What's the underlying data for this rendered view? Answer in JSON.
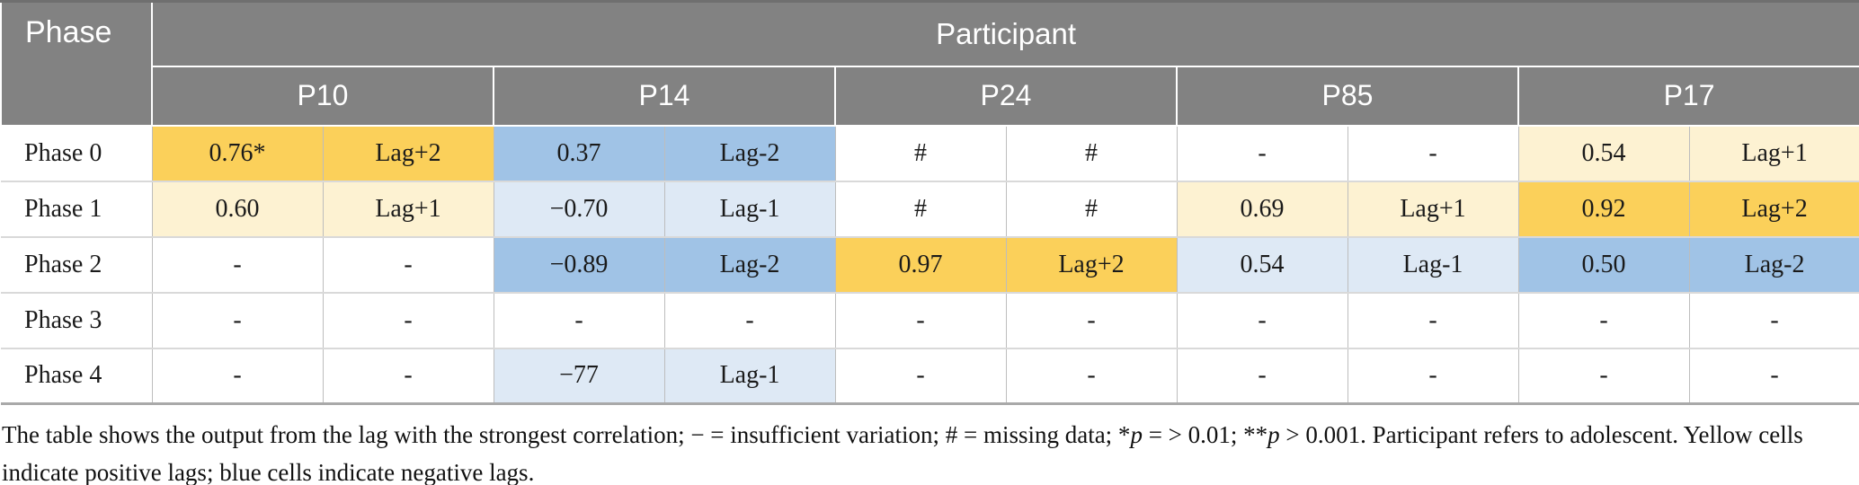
{
  "colors": {
    "y2": "#FBD05A",
    "y1": "#FDF2D2",
    "b2": "#A0C3E6",
    "b1": "#DEE9F5",
    "plain": "#FFFFFF"
  },
  "table": {
    "corner_header": "Phase",
    "group_header": "Participant",
    "participants": [
      "P10",
      "P14",
      "P24",
      "P85",
      "P17"
    ],
    "rows": [
      {
        "label": "Phase 0",
        "cells": [
          {
            "text": "0.76*",
            "shade": "y2"
          },
          {
            "text": "Lag+2",
            "shade": "y2"
          },
          {
            "text": "0.37",
            "shade": "b2"
          },
          {
            "text": "Lag-2",
            "shade": "b2"
          },
          {
            "text": "#",
            "shade": "plain"
          },
          {
            "text": "#",
            "shade": "plain"
          },
          {
            "text": "-",
            "shade": "plain"
          },
          {
            "text": "-",
            "shade": "plain"
          },
          {
            "text": "0.54",
            "shade": "y1"
          },
          {
            "text": "Lag+1",
            "shade": "y1"
          }
        ]
      },
      {
        "label": "Phase 1",
        "cells": [
          {
            "text": "0.60",
            "shade": "y1"
          },
          {
            "text": "Lag+1",
            "shade": "y1"
          },
          {
            "text": "−0.70",
            "shade": "b1"
          },
          {
            "text": "Lag-1",
            "shade": "b1"
          },
          {
            "text": "#",
            "shade": "plain"
          },
          {
            "text": "#",
            "shade": "plain"
          },
          {
            "text": "0.69",
            "shade": "y1"
          },
          {
            "text": "Lag+1",
            "shade": "y1"
          },
          {
            "text": "0.92",
            "shade": "y2"
          },
          {
            "text": "Lag+2",
            "shade": "y2"
          }
        ]
      },
      {
        "label": "Phase 2",
        "cells": [
          {
            "text": "-",
            "shade": "plain"
          },
          {
            "text": "-",
            "shade": "plain"
          },
          {
            "text": "−0.89",
            "shade": "b2"
          },
          {
            "text": "Lag-2",
            "shade": "b2"
          },
          {
            "text": "0.97",
            "shade": "y2"
          },
          {
            "text": "Lag+2",
            "shade": "y2"
          },
          {
            "text": "0.54",
            "shade": "b1"
          },
          {
            "text": "Lag-1",
            "shade": "b1"
          },
          {
            "text": "0.50",
            "shade": "b2"
          },
          {
            "text": "Lag-2",
            "shade": "b2"
          }
        ]
      },
      {
        "label": "Phase 3",
        "cells": [
          {
            "text": "-",
            "shade": "plain"
          },
          {
            "text": "-",
            "shade": "plain"
          },
          {
            "text": "-",
            "shade": "plain"
          },
          {
            "text": "-",
            "shade": "plain"
          },
          {
            "text": "-",
            "shade": "plain"
          },
          {
            "text": "-",
            "shade": "plain"
          },
          {
            "text": "-",
            "shade": "plain"
          },
          {
            "text": "-",
            "shade": "plain"
          },
          {
            "text": "-",
            "shade": "plain"
          },
          {
            "text": "-",
            "shade": "plain"
          }
        ]
      },
      {
        "label": "Phase 4",
        "cells": [
          {
            "text": "-",
            "shade": "plain"
          },
          {
            "text": "-",
            "shade": "plain"
          },
          {
            "text": "−77",
            "shade": "b1"
          },
          {
            "text": "Lag-1",
            "shade": "b1"
          },
          {
            "text": "-",
            "shade": "plain"
          },
          {
            "text": "-",
            "shade": "plain"
          },
          {
            "text": "-",
            "shade": "plain"
          },
          {
            "text": "-",
            "shade": "plain"
          },
          {
            "text": "-",
            "shade": "plain"
          },
          {
            "text": "-",
            "shade": "plain"
          }
        ]
      }
    ]
  },
  "footnote": {
    "segments": [
      {
        "text": "The table shows the output from the lag with the strongest correlation; − = insufficient variation; # = missing data; *"
      },
      {
        "text": "p",
        "italic": true
      },
      {
        "text": " = > 0.01; **"
      },
      {
        "text": "p",
        "italic": true
      },
      {
        "text": " > 0.001. Participant refers to adolescent. Yellow cells"
      },
      {
        "break": true
      },
      {
        "text": "indicate positive lags; blue cells indicate negative lags."
      }
    ]
  }
}
